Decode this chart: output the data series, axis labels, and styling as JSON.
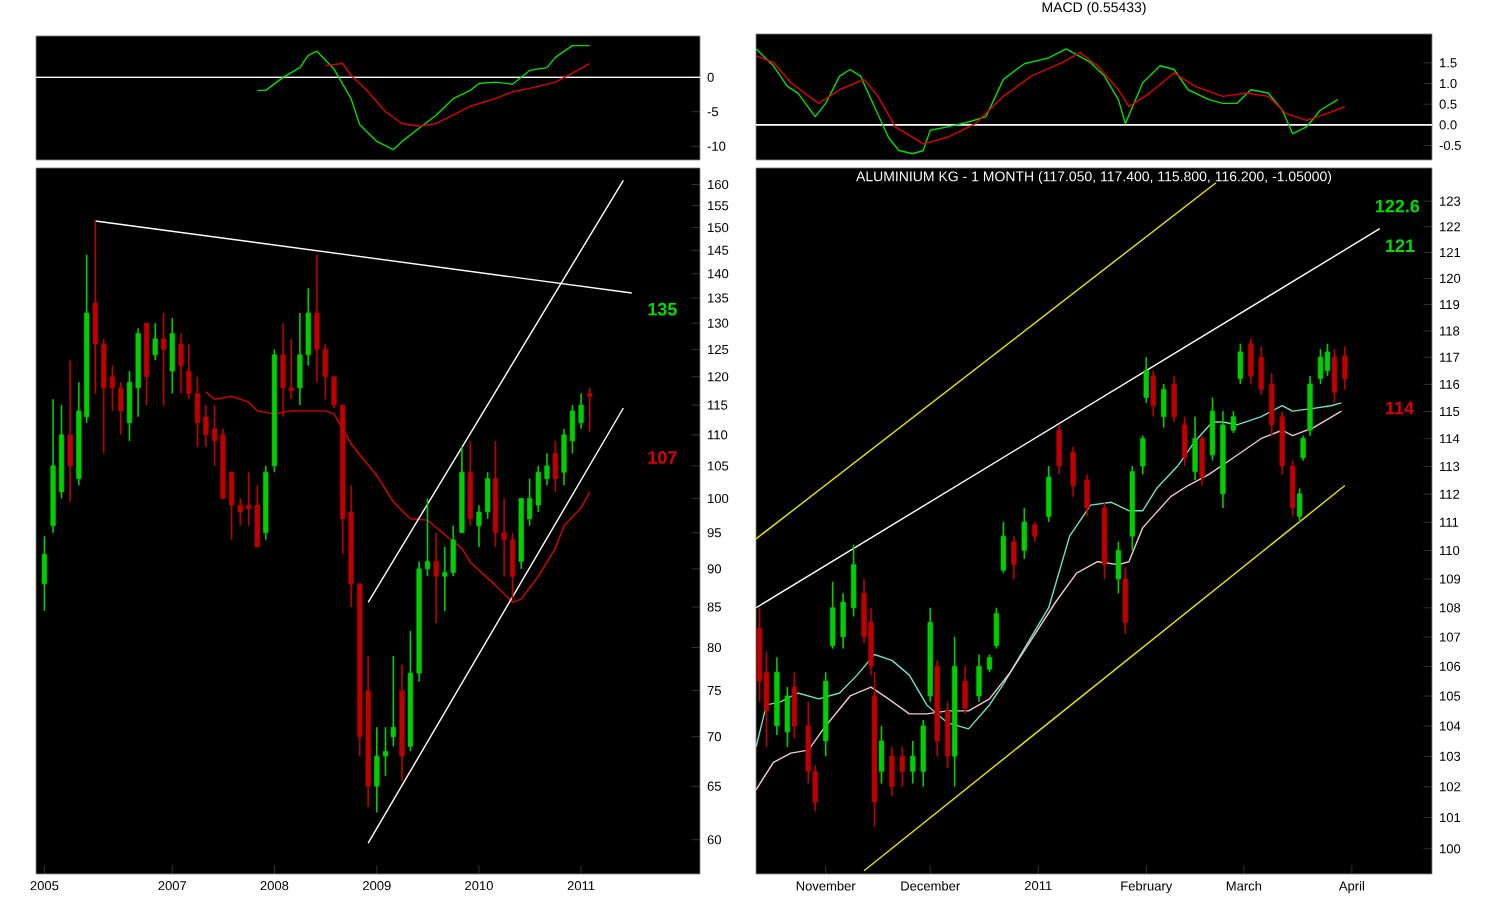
{
  "chart_data": [
    {
      "type": "line",
      "xlim": [
        "2005-09-01",
        "2012-03-01"
      ],
      "ylim": [
        -12,
        6
      ],
      "yticks": [
        0,
        -5,
        -10
      ],
      "tick_labels": "y",
      "ref_lines": [
        {
          "axis": "y",
          "value": 0,
          "color": "#ffffff"
        }
      ],
      "series": [
        {
          "type": "line",
          "color": "#00e000",
          "x": [
            "2007-11",
            "2007-12",
            "2008-02",
            "2008-04",
            "2008-05",
            "2008-06",
            "2008-08",
            "2008-10",
            "2008-11",
            "2009-01",
            "2009-03",
            "2009-04",
            "2009-06",
            "2009-08",
            "2009-10",
            "2009-12",
            "2010-01",
            "2010-03",
            "2010-05",
            "2010-06",
            "2010-07",
            "2010-09",
            "2010-10",
            "2010-12",
            "2011-02"
          ],
          "values": [
            -1.9,
            -1.9,
            0,
            1.4,
            3.2,
            3.8,
            1.2,
            -3.1,
            -6.9,
            -9.3,
            -10.5,
            -9.3,
            -7.4,
            -5.5,
            -3.1,
            -1.9,
            -0.9,
            -0.7,
            -1.0,
            0,
            1.0,
            1.4,
            2.9,
            4.6,
            4.6
          ]
        },
        {
          "type": "line",
          "color": "#e00000",
          "x": [
            "2008-07",
            "2008-09",
            "2008-10",
            "2008-12",
            "2009-02",
            "2009-04",
            "2009-06",
            "2009-08",
            "2009-10",
            "2009-12",
            "2010-03",
            "2010-05",
            "2010-07",
            "2010-10",
            "2010-12",
            "2011-02"
          ],
          "values": [
            1.7,
            2.0,
            0.3,
            -2.1,
            -5.0,
            -6.7,
            -7.1,
            -6.7,
            -5.5,
            -4.2,
            -3.1,
            -2.1,
            -1.6,
            -0.7,
            0.6,
            2.0
          ]
        }
      ]
    },
    {
      "type": "candlestick",
      "log": true,
      "xlim": [
        "2005-09-01",
        "2012-03-01"
      ],
      "ylim": [
        57,
        164
      ],
      "xticks": [
        {
          "value": "2005-10",
          "label": "2005"
        },
        {
          "value": "2007-01",
          "label": "2007"
        },
        {
          "value": "2008-01",
          "label": "2008"
        },
        {
          "value": "2009-01",
          "label": "2009"
        },
        {
          "value": "2010-01",
          "label": "2010"
        },
        {
          "value": "2011-01",
          "label": "2011"
        }
      ],
      "yticks": [
        60,
        65,
        70,
        75,
        80,
        85,
        90,
        95,
        100,
        105,
        110,
        115,
        120,
        125,
        130,
        135,
        140,
        145,
        150,
        155,
        160
      ],
      "x": [
        "2005-10",
        "2005-11",
        "2005-12",
        "2006-01",
        "2006-02",
        "2006-03",
        "2006-04",
        "2006-05",
        "2006-06",
        "2006-07",
        "2006-08",
        "2006-09",
        "2006-10",
        "2006-11",
        "2006-12",
        "2007-01",
        "2007-02",
        "2007-03",
        "2007-04",
        "2007-05",
        "2007-06",
        "2007-07",
        "2007-08",
        "2007-09",
        "2007-10",
        "2007-11",
        "2007-12",
        "2008-01",
        "2008-02",
        "2008-03",
        "2008-04",
        "2008-05",
        "2008-06",
        "2008-07",
        "2008-08",
        "2008-09",
        "2008-10",
        "2008-11",
        "2008-12",
        "2009-01",
        "2009-02",
        "2009-03",
        "2009-04",
        "2009-05",
        "2009-06",
        "2009-07",
        "2009-08",
        "2009-09",
        "2009-10",
        "2009-11",
        "2009-12",
        "2010-01",
        "2010-02",
        "2010-03",
        "2010-04",
        "2010-05",
        "2010-06",
        "2010-07",
        "2010-08",
        "2010-09",
        "2010-10",
        "2010-11",
        "2010-12",
        "2011-01",
        "2011-02"
      ],
      "ohlc": [
        [
          88,
          94.5,
          84.5,
          92
        ],
        [
          96,
          116,
          95,
          105
        ],
        [
          101,
          115,
          100,
          110
        ],
        [
          110,
          123,
          99.5,
          105
        ],
        [
          103,
          119,
          102,
          114
        ],
        [
          113,
          144,
          112,
          132
        ],
        [
          134,
          151.5,
          117,
          126
        ],
        [
          126,
          127,
          107,
          118
        ],
        [
          120,
          122,
          114,
          118
        ],
        [
          118,
          119,
          110,
          114
        ],
        [
          112,
          121,
          109,
          119
        ],
        [
          118,
          129,
          113,
          128
        ],
        [
          130,
          130,
          115,
          120
        ],
        [
          124,
          130,
          123,
          127
        ],
        [
          127,
          132,
          115,
          125
        ],
        [
          121,
          131,
          117,
          128
        ],
        [
          126,
          128,
          117,
          122
        ],
        [
          121,
          126,
          116,
          117
        ],
        [
          117,
          120,
          108,
          112
        ],
        [
          113,
          115,
          108,
          110
        ],
        [
          111,
          115,
          105,
          109
        ],
        [
          110,
          111,
          100,
          100
        ],
        [
          104,
          104,
          94,
          99
        ],
        [
          99,
          100,
          96,
          98
        ],
        [
          99,
          104,
          96,
          98.5
        ],
        [
          99,
          102,
          93,
          93
        ],
        [
          95,
          105,
          94,
          104
        ],
        [
          105,
          125,
          104,
          124
        ],
        [
          124,
          130,
          113,
          118
        ],
        [
          118,
          127,
          116,
          117.5
        ],
        [
          118,
          132,
          115,
          124
        ],
        [
          124,
          137,
          122,
          132
        ],
        [
          132,
          144,
          119,
          125
        ],
        [
          125,
          126,
          116,
          120
        ],
        [
          120,
          120,
          114.5,
          115
        ],
        [
          115,
          115,
          92,
          97
        ],
        [
          98,
          102,
          85,
          88
        ],
        [
          88,
          88,
          68,
          70
        ],
        [
          75,
          79,
          63,
          65
        ],
        [
          65,
          71,
          62.5,
          68
        ],
        [
          68,
          71,
          66,
          68.5
        ],
        [
          70,
          79,
          69,
          71
        ],
        [
          75,
          78,
          65.5,
          68
        ],
        [
          69,
          82,
          68.5,
          77
        ],
        [
          77,
          91,
          76,
          90
        ],
        [
          90,
          100,
          89,
          91
        ],
        [
          91,
          95,
          83,
          89
        ],
        [
          89,
          93,
          84.5,
          89.5
        ],
        [
          89.5,
          96,
          89,
          94
        ],
        [
          95,
          108,
          95,
          104
        ],
        [
          104,
          109,
          96,
          97
        ],
        [
          96,
          99,
          93,
          98
        ],
        [
          98,
          104,
          97,
          103
        ],
        [
          103,
          109,
          93,
          95
        ],
        [
          95,
          100,
          89,
          94
        ],
        [
          94,
          95,
          86,
          89
        ],
        [
          91,
          100,
          90,
          100
        ],
        [
          97,
          103,
          96,
          100
        ],
        [
          99,
          105,
          98,
          104
        ],
        [
          103,
          107,
          102,
          105
        ],
        [
          107,
          109,
          101,
          103
        ],
        [
          104,
          111,
          102,
          110
        ],
        [
          109,
          115,
          107,
          114
        ],
        [
          112,
          117,
          111,
          115
        ],
        [
          117,
          118,
          110.5,
          116.5
        ]
      ],
      "series": [
        {
          "type": "line",
          "color": "#e00000",
          "x": [
            "2007-05",
            "2007-06",
            "2007-08",
            "2007-10",
            "2007-11",
            "2008-01",
            "2008-03",
            "2008-05",
            "2008-07",
            "2008-08",
            "2008-09",
            "2008-10",
            "2009-01",
            "2009-03",
            "2009-05",
            "2009-07",
            "2009-09",
            "2009-11",
            "2009-12",
            "2010-03",
            "2010-05",
            "2010-06",
            "2010-08",
            "2010-10",
            "2010-11",
            "2011-01",
            "2011-02"
          ],
          "values": [
            117.3,
            116,
            116.5,
            115.5,
            114,
            113.5,
            114,
            114,
            114,
            113.5,
            111,
            108.5,
            103.5,
            99.5,
            97,
            96.8,
            94.7,
            92.8,
            90.9,
            87.8,
            85.6,
            86,
            89,
            92.8,
            96,
            98.6,
            101
          ]
        },
        {
          "type": "line",
          "color": "#ffffff",
          "x": [
            "2006-04",
            "2011-07"
          ],
          "values": [
            151.5,
            136
          ]
        },
        {
          "type": "line",
          "color": "#ffffff",
          "x": [
            "2008-12",
            "2011-06"
          ],
          "values": [
            85.6,
            161
          ]
        },
        {
          "type": "line",
          "color": "#ffffff",
          "x": [
            "2008-12",
            "2011-06"
          ],
          "values": [
            59.7,
            114.5
          ]
        }
      ],
      "annotations": [
        "135",
        "107"
      ]
    },
    {
      "type": "line",
      "title": "MACD (0.55433)",
      "xlim": [
        "2010-10-12",
        "2011-04-24"
      ],
      "ylim": [
        -0.85,
        2.2
      ],
      "yticks": [
        -0.5,
        {
          "value": 0,
          "label": "0.0"
        },
        0.5,
        {
          "value": 1,
          "label": "1.0"
        },
        1.5
      ],
      "tick_labels": "y",
      "ref_lines": [
        {
          "axis": "y",
          "value": 0,
          "color": "#ffffff"
        }
      ],
      "series": [
        {
          "type": "line",
          "color": "#00e000",
          "x": [
            "2010-10-12",
            "2010-10-17",
            "2010-10-21",
            "2010-10-24",
            "2010-10-29",
            "2010-11-01",
            "2010-11-05",
            "2010-11-08",
            "2010-11-11",
            "2010-11-15",
            "2010-11-19",
            "2010-11-22",
            "2010-11-26",
            "2010-11-29",
            "2010-12-01",
            "2010-12-06",
            "2010-12-12",
            "2010-12-17",
            "2010-12-22",
            "2010-12-28",
            "2011-01-04",
            "2011-01-09",
            "2011-01-16",
            "2011-01-20",
            "2011-01-24",
            "2011-01-26",
            "2011-01-31",
            "2011-02-05",
            "2011-02-09",
            "2011-02-13",
            "2011-02-19",
            "2011-02-23",
            "2011-02-27",
            "2011-03-03",
            "2011-03-08",
            "2011-03-12",
            "2011-03-15",
            "2011-03-19",
            "2011-03-23",
            "2011-03-28"
          ],
          "values": [
            1.84,
            1.43,
            0.93,
            0.77,
            0.2,
            0.52,
            1.18,
            1.34,
            1.18,
            0.44,
            -0.3,
            -0.62,
            -0.7,
            -0.62,
            -0.13,
            -0.05,
            0.07,
            0.2,
            1.1,
            1.48,
            1.62,
            1.84,
            1.51,
            1.18,
            0.61,
            0.03,
            1.02,
            1.43,
            1.34,
            0.85,
            0.61,
            0.52,
            0.52,
            0.85,
            0.77,
            0.36,
            -0.21,
            -0.05,
            0.36,
            0.61
          ]
        },
        {
          "type": "line",
          "color": "#e00000",
          "x": [
            "2010-10-12",
            "2010-10-17",
            "2010-10-22",
            "2010-10-30",
            "2010-11-05",
            "2010-11-12",
            "2010-11-16",
            "2010-11-21",
            "2010-11-29",
            "2010-12-06",
            "2010-12-14",
            "2010-12-22",
            "2010-12-30",
            "2011-01-08",
            "2011-01-13",
            "2011-01-18",
            "2011-01-24",
            "2011-01-27",
            "2011-02-02",
            "2011-02-09",
            "2011-02-15",
            "2011-02-23",
            "2011-03-02",
            "2011-03-08",
            "2011-03-13",
            "2011-03-19",
            "2011-03-25",
            "2011-03-30"
          ],
          "values": [
            1.67,
            1.51,
            1.02,
            0.52,
            0.85,
            1.1,
            0.69,
            -0.05,
            -0.46,
            -0.3,
            0.03,
            0.69,
            1.18,
            1.51,
            1.75,
            1.43,
            0.85,
            0.44,
            0.77,
            1.26,
            0.93,
            0.69,
            0.77,
            0.69,
            0.28,
            0.11,
            0.28,
            0.44
          ]
        }
      ]
    },
    {
      "type": "candlestick",
      "log": true,
      "title": "ALUMINIUM KG - 1 MONTH (117.050, 117.400, 115.800, 116.200, -1.05000)",
      "xlim": [
        "2010-10-12",
        "2011-04-24"
      ],
      "ylim": [
        99.2,
        124.3
      ],
      "xticks": [
        {
          "value": "2010-11-01",
          "label": "November"
        },
        {
          "value": "2010-12-01",
          "label": "December"
        },
        {
          "value": "2011-01-01",
          "label": "2011"
        },
        {
          "value": "2011-02-01",
          "label": "February"
        },
        {
          "value": "2011-03-01",
          "label": "March"
        },
        {
          "value": "2011-04-01",
          "label": "April"
        }
      ],
      "yticks": [
        100,
        101,
        102,
        103,
        104,
        105,
        106,
        107,
        108,
        109,
        110,
        111,
        112,
        113,
        114,
        115,
        116,
        117,
        118,
        119,
        120,
        121,
        122,
        123
      ],
      "x": [
        "2010-10-13",
        "2010-10-15",
        "2010-10-18",
        "2010-10-21",
        "2010-10-23",
        "2010-10-27",
        "2010-10-29",
        "2010-11-01",
        "2010-11-03",
        "2010-11-06",
        "2010-11-09",
        "2010-11-12",
        "2010-11-14",
        "2010-11-15",
        "2010-11-17",
        "2010-11-20",
        "2010-11-23",
        "2010-11-26",
        "2010-11-29",
        "2010-12-01",
        "2010-12-03",
        "2010-12-06",
        "2010-12-08",
        "2010-12-11",
        "2010-12-15",
        "2010-12-18",
        "2010-12-20",
        "2010-12-22",
        "2010-12-25",
        "2010-12-28",
        "2010-12-31",
        "2011-01-04",
        "2011-01-07",
        "2011-01-11",
        "2011-01-15",
        "2011-01-20",
        "2011-01-24",
        "2011-01-26",
        "2011-01-28",
        "2011-01-31",
        "2011-02-01",
        "2011-02-03",
        "2011-02-06",
        "2011-02-09",
        "2011-02-12",
        "2011-02-15",
        "2011-02-17",
        "2011-02-20",
        "2011-02-23",
        "2011-02-26",
        "2011-02-28",
        "2011-03-03",
        "2011-03-06",
        "2011-03-09",
        "2011-03-12",
        "2011-03-15",
        "2011-03-17",
        "2011-03-18",
        "2011-03-20",
        "2011-03-23",
        "2011-03-25",
        "2011-03-27",
        "2011-03-30"
      ],
      "ohlc": [
        [
          107.3,
          108,
          104.8,
          105.5
        ],
        [
          105.8,
          106.5,
          103.3,
          104.5
        ],
        [
          104,
          106.3,
          103.7,
          105.8
        ],
        [
          103.8,
          105.3,
          103.3,
          105
        ],
        [
          105.3,
          105.8,
          103.6,
          104
        ],
        [
          104,
          104.8,
          102.1,
          102.5
        ],
        [
          102.5,
          102.7,
          101.2,
          101.5
        ],
        [
          103.5,
          105.8,
          103,
          105.5
        ],
        [
          106.7,
          108.9,
          106.6,
          108
        ],
        [
          107,
          108.5,
          106.6,
          108.2
        ],
        [
          108,
          110.2,
          107.7,
          109.5
        ],
        [
          108.5,
          109,
          106.8,
          107
        ],
        [
          107.5,
          108,
          105.7,
          106
        ],
        [
          105,
          105.8,
          100.7,
          101.5
        ],
        [
          102.5,
          104,
          102.1,
          103.5
        ],
        [
          103,
          103.3,
          101.7,
          102
        ],
        [
          103,
          103.3,
          102,
          102.5
        ],
        [
          102.5,
          103.5,
          102.1,
          103
        ],
        [
          102.5,
          104.2,
          102,
          104
        ],
        [
          105,
          108,
          104.8,
          107.5
        ],
        [
          106,
          106.2,
          103,
          103.5
        ],
        [
          104.5,
          104.8,
          102.6,
          103
        ],
        [
          103,
          107,
          102,
          106
        ],
        [
          105.5,
          106,
          104.4,
          104.6
        ],
        [
          105,
          106.4,
          104.8,
          106
        ],
        [
          105.9,
          106.4,
          105.8,
          106.3
        ],
        [
          106.7,
          108,
          106.6,
          107.8
        ],
        [
          109.3,
          111,
          109.2,
          110.5
        ],
        [
          110.3,
          110.5,
          109,
          109.5
        ],
        [
          110,
          111.5,
          109.7,
          111
        ],
        [
          110.9,
          111,
          110.3,
          110.5
        ],
        [
          111.2,
          113,
          111,
          112.6
        ],
        [
          114.3,
          114.5,
          112.7,
          113
        ],
        [
          113.5,
          113.7,
          111.9,
          112.3
        ],
        [
          112.5,
          112.7,
          111.2,
          111.5
        ],
        [
          111.5,
          111.7,
          109,
          109.5
        ],
        [
          109,
          110.3,
          108.5,
          110
        ],
        [
          109,
          109.4,
          107.1,
          107.5
        ],
        [
          110.5,
          113,
          110,
          112.8
        ],
        [
          113,
          114.1,
          112.7,
          114
        ],
        [
          115.5,
          117,
          115.3,
          116.5
        ],
        [
          116.3,
          116.5,
          114.8,
          115.2
        ],
        [
          114.8,
          116,
          114.4,
          115.8
        ],
        [
          116,
          116.3,
          114.6,
          114.8
        ],
        [
          114.5,
          114.8,
          113,
          113.3
        ],
        [
          112.8,
          114.8,
          112.5,
          114
        ],
        [
          114,
          114.1,
          112.3,
          112.6
        ],
        [
          113.4,
          115.5,
          113.2,
          115
        ],
        [
          112,
          115,
          111.5,
          114.5
        ],
        [
          114.3,
          115,
          114.2,
          114.8
        ],
        [
          116.2,
          117.5,
          116,
          117.2
        ],
        [
          117.5,
          117.7,
          116,
          116.3
        ],
        [
          117,
          117.4,
          115.6,
          115.8
        ],
        [
          116,
          116.4,
          114.1,
          114.5
        ],
        [
          114.8,
          115,
          112.7,
          113
        ],
        [
          113,
          113.2,
          111.2,
          111.5
        ],
        [
          111.2,
          112.2,
          111,
          112
        ],
        [
          113.3,
          114.1,
          113.2,
          114
        ],
        [
          114.3,
          116.3,
          114.1,
          116
        ],
        [
          116.2,
          117.3,
          116,
          117
        ],
        [
          116.5,
          117.5,
          116.3,
          117.2
        ],
        [
          117,
          117.3,
          115.3,
          115.7
        ],
        [
          117.05,
          117.4,
          115.8,
          116.2
        ]
      ],
      "series": [
        {
          "type": "line",
          "color": "#70e0c8",
          "x": [
            "2010-10-12",
            "2010-10-15",
            "2010-10-19",
            "2010-10-24",
            "2010-10-30",
            "2010-11-05",
            "2010-11-10",
            "2010-11-15",
            "2010-11-20",
            "2010-11-25",
            "2010-11-30",
            "2010-12-06",
            "2010-12-12",
            "2010-12-18",
            "2010-12-22",
            "2010-12-28",
            "2011-01-04",
            "2011-01-10",
            "2011-01-16",
            "2011-01-22",
            "2011-01-27",
            "2011-01-31",
            "2011-02-04",
            "2011-02-10",
            "2011-02-15",
            "2011-02-20",
            "2011-02-23",
            "2011-02-27",
            "2011-03-06",
            "2011-03-12",
            "2011-03-15",
            "2011-03-21",
            "2011-03-26",
            "2011-03-29"
          ],
          "values": [
            103.3,
            104.7,
            104.8,
            105.1,
            104.9,
            105.1,
            105.7,
            106.4,
            106.2,
            105.7,
            104.7,
            104.1,
            103.9,
            104.7,
            105.4,
            106.6,
            108,
            110.5,
            111.6,
            111.7,
            111.4,
            111.4,
            112.2,
            113,
            113.9,
            114.6,
            114.6,
            114.5,
            114.8,
            115.2,
            115,
            115.1,
            115.2,
            115.3
          ]
        },
        {
          "type": "line",
          "color": "#f0c8c8",
          "x": [
            "2010-10-12",
            "2010-10-17",
            "2010-10-22",
            "2010-10-27",
            "2010-11-01",
            "2010-11-08",
            "2010-11-14",
            "2010-11-19",
            "2010-11-25",
            "2010-11-30",
            "2010-12-06",
            "2010-12-12",
            "2010-12-18",
            "2010-12-24",
            "2010-12-30",
            "2011-01-06",
            "2011-01-12",
            "2011-01-18",
            "2011-01-24",
            "2011-01-27",
            "2011-01-31",
            "2011-02-08",
            "2011-02-13",
            "2011-02-19",
            "2011-02-26",
            "2011-03-06",
            "2011-03-12",
            "2011-03-15",
            "2011-03-21",
            "2011-03-29"
          ],
          "values": [
            101.9,
            102.8,
            103.1,
            103.2,
            104,
            105,
            105.3,
            104.9,
            104.4,
            104.4,
            104.5,
            104.5,
            104.9,
            105.8,
            106.9,
            108.2,
            109.2,
            109.6,
            109.5,
            109.6,
            110.8,
            111.9,
            112.3,
            112.7,
            113.3,
            114,
            114.3,
            114.1,
            114.4,
            115
          ]
        },
        {
          "type": "line",
          "color": "#e6e600",
          "x": [
            "2010-10-12",
            "2011-02-21"
          ],
          "values": [
            110.4,
            123.7
          ]
        },
        {
          "type": "line",
          "color": "#e6e600",
          "x": [
            "2010-11-12",
            "2011-03-30"
          ],
          "values": [
            99.3,
            112.3
          ]
        },
        {
          "type": "line",
          "color": "#ffffff",
          "x": [
            "2010-10-12",
            "2011-04-09"
          ],
          "values": [
            108,
            121.9
          ]
        }
      ],
      "annotations": [
        "122.6",
        "121",
        "114"
      ]
    }
  ]
}
